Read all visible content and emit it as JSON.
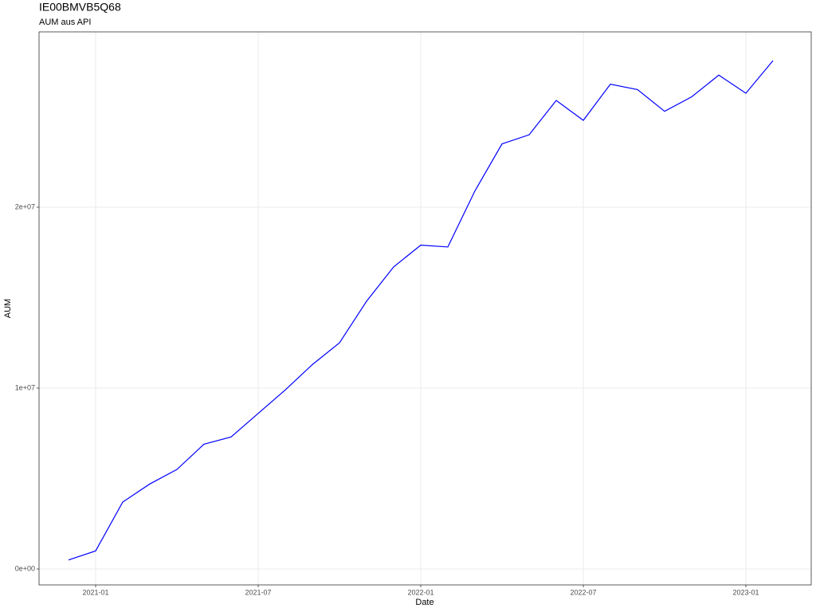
{
  "chart_data": {
    "type": "line",
    "title": "IE00BMVB5Q68",
    "subtitle": "AUM aus API",
    "x_label": "Date",
    "y_label": "AUM",
    "color": "#0000ff",
    "grid": true,
    "x": [
      "2020-12",
      "2021-01",
      "2021-02",
      "2021-03",
      "2021-04",
      "2021-05",
      "2021-06",
      "2021-07",
      "2021-08",
      "2021-09",
      "2021-10",
      "2021-11",
      "2021-12",
      "2022-01",
      "2022-02",
      "2022-03",
      "2022-04",
      "2022-05",
      "2022-06",
      "2022-07",
      "2022-08",
      "2022-09",
      "2022-10",
      "2022-11",
      "2022-12",
      "2023-01",
      "2023-02"
    ],
    "values": [
      500000,
      1000000,
      3700000,
      4700000,
      5500000,
      6900000,
      7300000,
      8600000,
      9900000,
      11300000,
      12500000,
      14800000,
      16700000,
      17900000,
      17800000,
      20900000,
      23500000,
      24000000,
      25900000,
      24800000,
      26800000,
      26500000,
      25300000,
      26100000,
      27300000,
      26300000,
      28100000
    ],
    "xlim": [
      "2020-11",
      "2023-03"
    ],
    "xticks": [
      "2021-01",
      "2021-07",
      "2022-01",
      "2022-07",
      "2023-01"
    ],
    "ylim": [
      -880000,
      29690000
    ],
    "yticks": [
      {
        "value": 0,
        "label": "0e+00"
      },
      {
        "value": 10000000,
        "label": "1e+07"
      },
      {
        "value": 20000000,
        "label": "2e+07"
      }
    ]
  }
}
